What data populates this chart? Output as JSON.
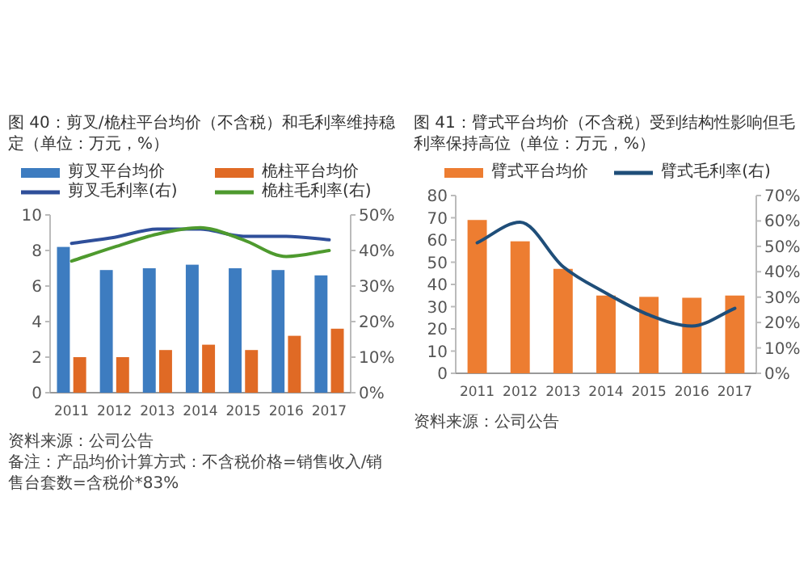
{
  "chart_data": [
    {
      "type": "bar",
      "title": "图 40：剪叉/桅柱平台均价（不含税）和毛利率维持稳定（单位：万元，%）",
      "categories": [
        "2011",
        "2012",
        "2013",
        "2014",
        "2015",
        "2016",
        "2017"
      ],
      "series": [
        {
          "name": "剪叉平台均价",
          "color": "#3d7cc0",
          "values": [
            8.2,
            6.9,
            7.0,
            7.2,
            7.0,
            6.9,
            6.6
          ]
        },
        {
          "name": "桅柱平台均价",
          "color": "#e06a25",
          "values": [
            2.0,
            2.0,
            2.4,
            2.7,
            2.4,
            3.2,
            3.6
          ]
        },
        {
          "name": "剪叉毛利率(右)",
          "type": "line",
          "axis": "y2",
          "color": "#2f4f9a",
          "values": [
            42,
            43.7,
            46,
            46,
            44,
            44,
            43
          ]
        },
        {
          "name": "桅柱毛利率(右)",
          "type": "line",
          "axis": "y2",
          "color": "#4e9a2e",
          "values": [
            37,
            41,
            44.6,
            46.4,
            43,
            38.3,
            40
          ]
        }
      ],
      "ylim": [
        0,
        10
      ],
      "yticks": [
        0,
        2,
        4,
        6,
        8,
        10
      ],
      "y2lim": [
        0,
        50
      ],
      "y2ticks": [
        {
          "value": 0,
          "label": "0%"
        },
        {
          "value": 10,
          "label": "10%"
        },
        {
          "value": 20,
          "label": "20%"
        },
        {
          "value": 30,
          "label": "30%"
        },
        {
          "value": 40,
          "label": "40%"
        },
        {
          "value": 50,
          "label": "50%"
        }
      ],
      "legend": "top",
      "annotations": [
        "资料来源：公司公告",
        "备注：产品均价计算方式：不含税价格=销售收入/销售台套数=含税价*83%"
      ]
    },
    {
      "type": "bar",
      "title": "图 41：臂式平台均价（不含税）受到结构性影响但毛利率保持高位（单位：万元，%）",
      "categories": [
        "2011",
        "2012",
        "2013",
        "2014",
        "2015",
        "2016",
        "2017"
      ],
      "series": [
        {
          "name": "臂式平台均价",
          "color": "#ed7d31",
          "values": [
            69,
            59.4,
            47,
            35,
            34.4,
            34,
            35
          ]
        },
        {
          "name": "臂式毛利率(右)",
          "type": "line",
          "axis": "y2",
          "color": "#1f4e79",
          "values": [
            51.4,
            59.5,
            42,
            31.6,
            23,
            18.6,
            25.6
          ]
        }
      ],
      "ylim": [
        0,
        80
      ],
      "yticks": [
        0,
        10,
        20,
        30,
        40,
        50,
        60,
        70,
        80
      ],
      "y2lim": [
        0,
        70
      ],
      "y2ticks": [
        {
          "value": 0,
          "label": "0%"
        },
        {
          "value": 10,
          "label": "10%"
        },
        {
          "value": 20,
          "label": "20%"
        },
        {
          "value": 30,
          "label": "30%"
        },
        {
          "value": 40,
          "label": "40%"
        },
        {
          "value": 50,
          "label": "50%"
        },
        {
          "value": 60,
          "label": "60%"
        },
        {
          "value": 70,
          "label": "70%"
        }
      ],
      "legend": "top",
      "annotations": [
        "资料来源：公司公告"
      ]
    }
  ]
}
